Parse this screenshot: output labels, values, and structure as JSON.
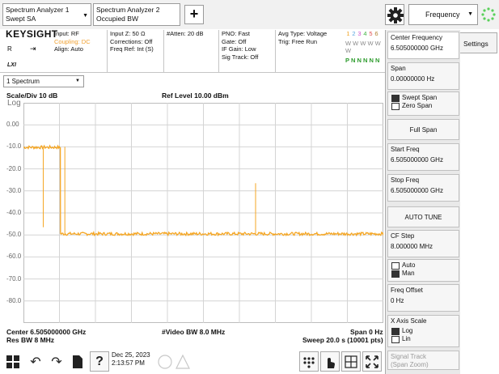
{
  "tabs": [
    {
      "line1": "Spectrum Analyzer 1",
      "line2": "Swept SA"
    },
    {
      "line1": "Spectrum Analyzer 2",
      "line2": "Occupied BW"
    }
  ],
  "menu_title": "Frequency",
  "header": {
    "brand": "KEYSIGHT",
    "brand_r": "R",
    "brand_lxi": "LXI",
    "col1": [
      "Input: RF",
      "Coupling: DC",
      "Align: Auto"
    ],
    "col2": [
      "Input Z: 50 Ω",
      "Corrections: Off",
      "Freq Ref: Int (S)"
    ],
    "col3": [
      "#Atten: 20 dB"
    ],
    "col4": [
      "PNO: Fast",
      "Gate: Off",
      "IF Gain: Low",
      "Sig Track: Off"
    ],
    "col5": [
      "Avg Type: Voltage",
      "Trig: Free Run"
    ],
    "trace_numbers": [
      "1",
      "2",
      "3",
      "4",
      "5",
      "6"
    ],
    "trace_types": "W W W W W W",
    "trace_dets": "P N N N N N"
  },
  "window_select": "1 Spectrum",
  "scale_label": "Scale/Div 10 dB",
  "log_label": "Log",
  "ref_label": "Ref Level 10.00 dBm",
  "y_ticks": [
    "0.00",
    "-10.0",
    "-20.0",
    "-30.0",
    "-40.0",
    "-50.0",
    "-60.0",
    "-70.0",
    "-80.0"
  ],
  "footer": {
    "center": "Center 6.505000000 GHz",
    "res_bw": "Res BW 8 MHz",
    "video_bw": "#Video BW 8.0 MHz",
    "span": "Span 0 Hz",
    "sweep": "Sweep 20.0 s (10001 pts)"
  },
  "panel": {
    "settings_tab": "Settings",
    "center_freq_label": "Center Frequency",
    "center_freq_value": "6.505000000 GHz",
    "span_label": "Span",
    "span_value": "0.00000000 Hz",
    "swept_span": "Swept Span",
    "zero_span": "Zero Span",
    "full_span": "Full Span",
    "start_freq_label": "Start Freq",
    "start_freq_value": "6.505000000 GHz",
    "stop_freq_label": "Stop Freq",
    "stop_freq_value": "6.505000000 GHz",
    "auto_tune": "AUTO TUNE",
    "cf_step_label": "CF Step",
    "cf_step_value": "8.000000 MHz",
    "auto": "Auto",
    "man": "Man",
    "freq_offset_label": "Freq Offset",
    "freq_offset_value": "0 Hz",
    "x_axis_label": "X Axis Scale",
    "log": "Log",
    "lin": "Lin",
    "signal_track_label": "Signal Track",
    "signal_track_sub": "(Span Zoom)"
  },
  "datetime": {
    "date": "Dec 25, 2023",
    "time": "2:13:57 PM"
  },
  "colors": {
    "trace": "#f5a623",
    "grid": "#d4d4d4",
    "panel_bg": "#e9e9e9"
  },
  "chart_data": {
    "type": "line",
    "xlabel": "",
    "ylabel": "",
    "ylim": [
      -90,
      10
    ],
    "y_unit": "dBm",
    "x_unit": "s",
    "xlim": [
      0,
      20
    ],
    "series": [
      {
        "x": [
          0.0,
          2.0,
          2.05,
          2.06,
          19.99,
          20.0
        ],
        "values": [
          -10.2,
          -10.2,
          -10.2,
          -49.5,
          -49.5,
          -49.5
        ]
      }
    ],
    "spikes": [
      {
        "x": 1.1,
        "top": -10.5,
        "bottom": -46.5
      },
      {
        "x": 2.3,
        "top": -10.0,
        "bottom": -49.5
      },
      {
        "x": 12.9,
        "top": -26.5,
        "bottom": -49.5
      }
    ]
  }
}
